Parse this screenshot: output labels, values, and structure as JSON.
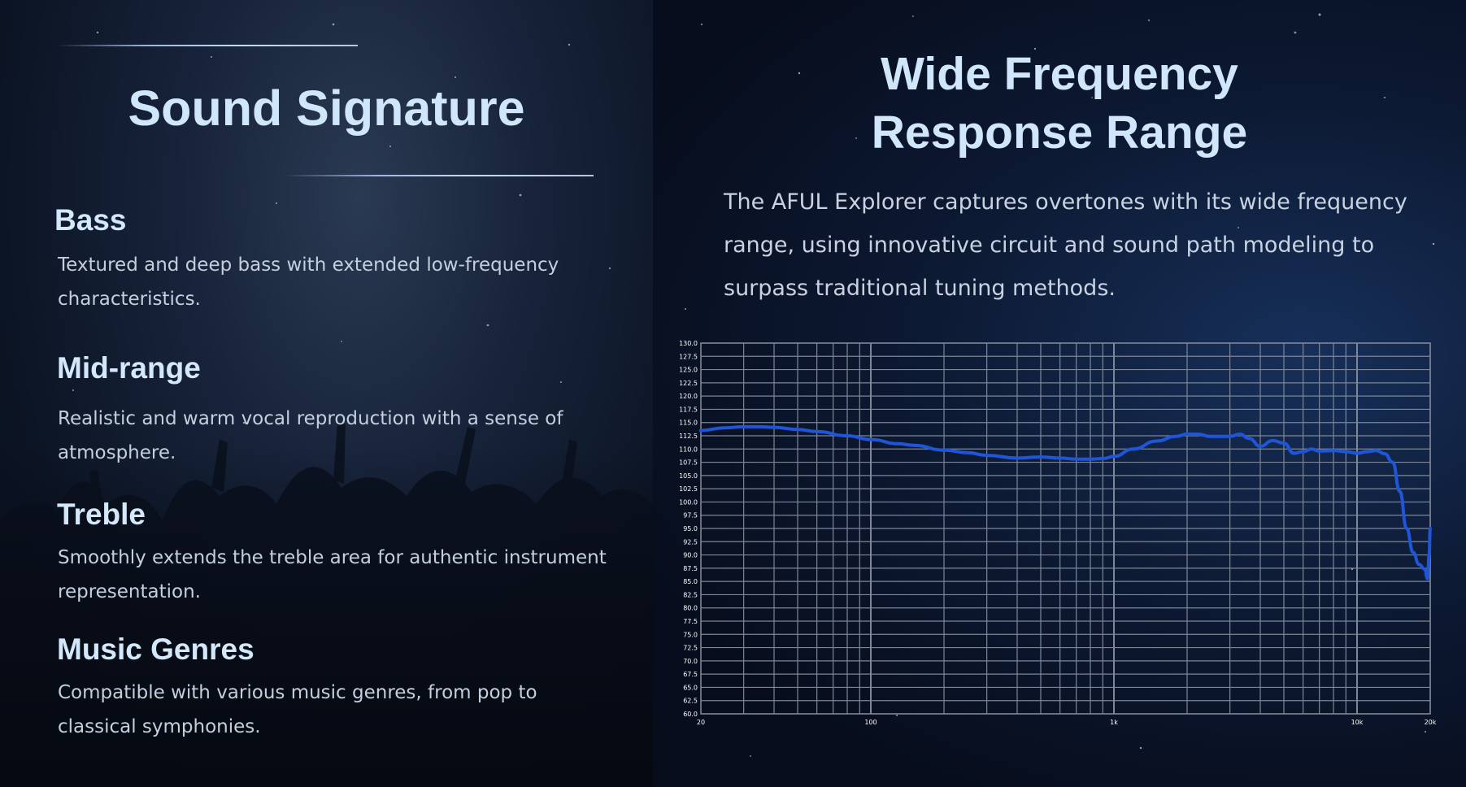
{
  "left": {
    "title": "Sound Signature",
    "sections": [
      {
        "heading": "Bass",
        "text": "Textured and deep bass with extended low-frequency characteristics."
      },
      {
        "heading": "Mid-range",
        "text": "Realistic and warm vocal reproduction with a sense of atmosphere."
      },
      {
        "heading": "Treble",
        "text": "Smoothly extends the treble area for authentic instrument representation."
      },
      {
        "heading": "Music Genres",
        "text": "Compatible with various music genres, from pop to classical symphonies."
      }
    ]
  },
  "right": {
    "title_line1": "Wide Frequency",
    "title_line2": "Response Range",
    "description": "The AFUL Explorer captures overtones with its wide frequency range, using innovative circuit and sound path modeling to surpass traditional tuning methods."
  },
  "colors": {
    "title": "#cfe6fb",
    "curve": "#1f56d8",
    "grid": "#7d8797"
  },
  "chart_data": {
    "type": "line",
    "x_scale": "log",
    "xlim": [
      20,
      20000
    ],
    "ylim": [
      60.0,
      130.0
    ],
    "x_tick_labels": [
      "20",
      "100",
      "1k",
      "10k",
      "20k"
    ],
    "x_tick_values": [
      20,
      100,
      1000,
      10000,
      20000
    ],
    "y_ticks": [
      "130.0",
      "127.5",
      "125.0",
      "122.5",
      "120.0",
      "117.5",
      "115.0",
      "112.5",
      "110.0",
      "107.5",
      "105.0",
      "102.5",
      "100.0",
      "97.5",
      "95.0",
      "92.5",
      "90.0",
      "87.5",
      "85.0",
      "82.5",
      "80.0",
      "77.5",
      "75.0",
      "72.5",
      "70.0",
      "67.5",
      "65.0",
      "62.5",
      "60.0"
    ],
    "grid": true,
    "series": [
      {
        "x": [
          20,
          25,
          30,
          35,
          40,
          50,
          60,
          80,
          100,
          130,
          150,
          200,
          250,
          300,
          400,
          500,
          600,
          700,
          800,
          900,
          1000,
          1200,
          1500,
          1800,
          2000,
          2200,
          2500,
          3000,
          3300,
          3600,
          4000,
          4500,
          5000,
          5500,
          6000,
          6500,
          7000,
          8000,
          9000,
          10000,
          11000,
          12000,
          13000,
          14000,
          15000,
          16000,
          17000,
          18000,
          19000,
          19500,
          19800,
          20000
        ],
        "y": [
          113.5,
          114.0,
          114.2,
          114.2,
          114.1,
          113.7,
          113.3,
          112.5,
          111.8,
          111.0,
          110.7,
          109.8,
          109.3,
          108.8,
          108.3,
          108.5,
          108.3,
          108.1,
          108.1,
          108.2,
          108.6,
          110.0,
          111.5,
          112.4,
          112.8,
          112.8,
          112.4,
          112.4,
          112.8,
          112.0,
          110.5,
          111.6,
          111.1,
          109.2,
          109.5,
          110.0,
          109.6,
          109.7,
          109.5,
          109.2,
          109.5,
          109.7,
          109.1,
          107.5,
          102.0,
          95.0,
          90.5,
          88.2,
          87.3,
          85.5,
          90.0,
          95.0
        ]
      }
    ]
  }
}
